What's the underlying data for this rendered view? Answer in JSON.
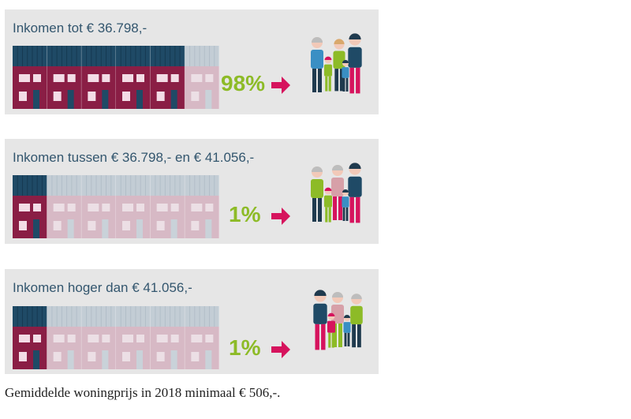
{
  "panels": [
    {
      "title": "Inkomen tot € 36.798,-",
      "percentage": "98%",
      "highlighted_houses": 5,
      "total_houses": 6,
      "family_variant": "a"
    },
    {
      "title": "Inkomen tussen € 36.798,- en € 41.056,-",
      "percentage": "1%",
      "highlighted_houses": 1,
      "total_houses": 6,
      "family_variant": "b"
    },
    {
      "title": "Inkomen hoger dan € 41.056,-",
      "percentage": "1%",
      "highlighted_houses": 1,
      "total_houses": 6,
      "family_variant": "c"
    }
  ],
  "footer": "Gemiddelde woningprijs in 2018 minimaal € 506,-.",
  "colors": {
    "panel_bg": "#e6e6e6",
    "house_wall": "#8a1e45",
    "house_roof": "#1f4a66",
    "house_faded_wall": "#d7b9c5",
    "house_faded_roof": "#c3cdd5",
    "percent": "#8dbb27",
    "arrow": "#d6135d",
    "title": "#33566e"
  },
  "icons": {
    "arrow": "arrow-right-icon",
    "family": "family-icon",
    "houses": "row-houses-icon"
  }
}
